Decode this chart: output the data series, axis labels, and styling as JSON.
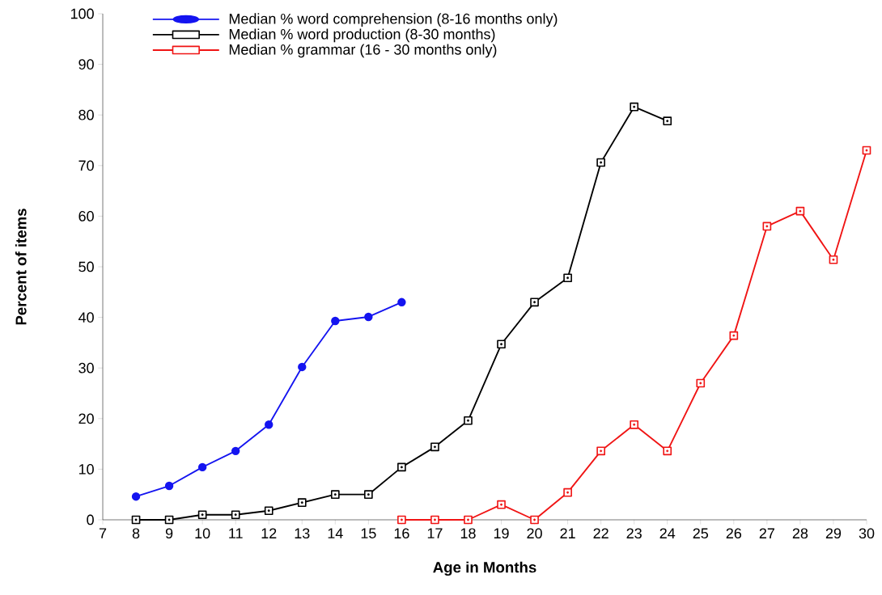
{
  "chart_data": {
    "type": "line",
    "xlabel": "Age  in  Months",
    "ylabel": "Percent  of  items",
    "xlim": [
      7,
      30
    ],
    "xticks": [
      7,
      8,
      9,
      10,
      11,
      12,
      13,
      14,
      15,
      16,
      17,
      18,
      19,
      20,
      21,
      22,
      23,
      24,
      25,
      26,
      27,
      28,
      29,
      30
    ],
    "ylim": [
      0,
      100
    ],
    "yticks": [
      0,
      10,
      20,
      30,
      40,
      50,
      60,
      70,
      80,
      90,
      100
    ],
    "grid": false,
    "legend": "top left",
    "series": [
      {
        "name": "Median % word comprehension (8-16 months only)",
        "color": "#1414f0",
        "marker": "circle",
        "x": [
          8,
          9,
          10,
          11,
          12,
          13,
          14,
          15,
          16
        ],
        "values": [
          4.6,
          6.7,
          10.4,
          13.6,
          18.8,
          30.2,
          39.3,
          40.1,
          43
        ]
      },
      {
        "name": "Median % word production (8-30 months)",
        "color": "#000000",
        "marker": "square",
        "x": [
          8,
          9,
          10,
          11,
          12,
          13,
          14,
          15,
          16,
          17,
          18,
          19,
          20,
          21,
          22,
          23,
          24
        ],
        "values": [
          0,
          0,
          1,
          1,
          1.8,
          3.4,
          5,
          5,
          10.4,
          14.4,
          19.6,
          34.7,
          43,
          47.8,
          70.6,
          81.6,
          78.8
        ]
      },
      {
        "name": "Median % grammar (16 - 30 months only)",
        "color": "#f01414",
        "marker": "square",
        "x": [
          16,
          17,
          18,
          19,
          20,
          21,
          22,
          23,
          24,
          25,
          26,
          27,
          28,
          29,
          30
        ],
        "values": [
          0,
          0,
          0,
          3,
          0,
          5.4,
          13.6,
          18.8,
          13.6,
          27,
          36.4,
          58,
          61,
          51.4,
          73
        ]
      }
    ]
  }
}
